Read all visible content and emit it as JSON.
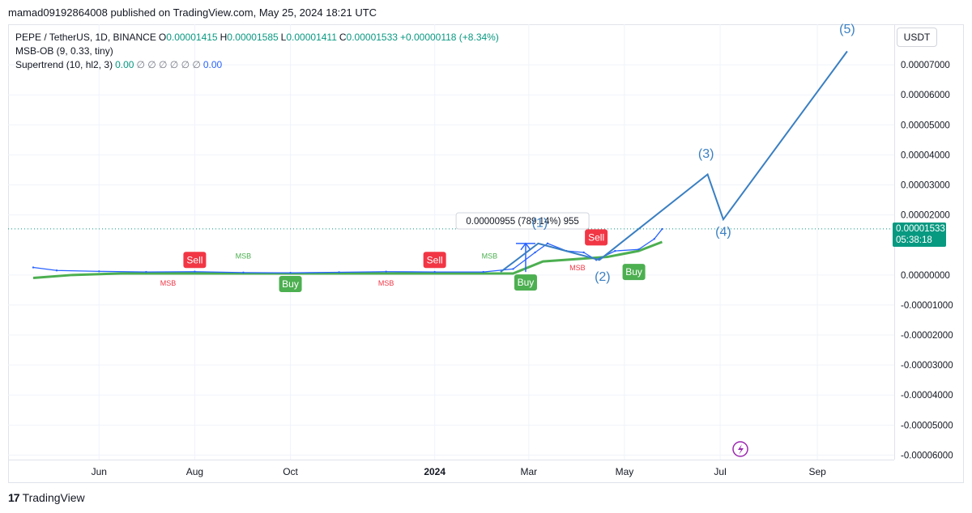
{
  "published": {
    "user": "mamad09192864008",
    "middle": " published on TradingView.com, ",
    "date": "May 25, 2024 18:21 UTC"
  },
  "legend": {
    "symbol": "PEPE / TetherUS, 1D, BINANCE",
    "o_key": "O",
    "o_val": "0.00001415",
    "h_key": "H",
    "h_val": "0.00001585",
    "l_key": "L",
    "l_val": "0.00001411",
    "c_key": "C",
    "c_val": "0.00001533",
    "change": "+0.00000118 (+8.34%)",
    "indicator1": "MSB-OB (9, 0.33, tiny)",
    "indicator2": "Supertrend (10, hl2, 3)",
    "st_val1": "0.00",
    "st_na": "∅ ∅ ∅ ∅ ∅ ∅",
    "st_val2": "0.00"
  },
  "currency": "USDT",
  "price_badge": {
    "price": "0.00001533",
    "countdown": "05:38:18"
  },
  "footer": {
    "brand": "TradingView",
    "logo_icon": "tradingview-logo-icon"
  },
  "colors": {
    "green": "#4caf50",
    "red": "#f23645",
    "wave_blue": "#3a7fc2",
    "candle_blue": "#2962ff",
    "teal": "#089981",
    "purple": "#9c27b0"
  },
  "chart_data": {
    "type": "line",
    "title": "",
    "yaxis": {
      "ticks": [
        "0.00007000",
        "0.00006000",
        "0.00005000",
        "0.00004000",
        "0.00003000",
        "0.00002000",
        "0.00000000",
        "-0.00001000",
        "-0.00002000",
        "-0.00003000",
        "-0.00004000",
        "-0.00005000",
        "-0.00006000"
      ],
      "tick_values": [
        7e-05,
        6e-05,
        5e-05,
        4e-05,
        3e-05,
        2e-05,
        0,
        -1e-05,
        -2e-05,
        -3e-05,
        -4e-05,
        -5e-05,
        -6e-05
      ],
      "ylim": [
        -6.15e-05,
        8.35e-05
      ]
    },
    "xaxis": {
      "ticks": [
        "Jun",
        "Aug",
        "Oct",
        "2024",
        "Mar",
        "May",
        "Jul",
        "Sep"
      ],
      "tick_dates": [
        "2023-06-01",
        "2023-08-01",
        "2023-10-01",
        "2024-01-01",
        "2024-03-01",
        "2024-05-01",
        "2024-07-01",
        "2024-09-01"
      ],
      "xlim": [
        "2023-04-04",
        "2024-10-20"
      ]
    },
    "last_price": 1.533e-05,
    "price_series": {
      "name": "PEPE / TetherUS",
      "x": [
        "2023-04-20",
        "2023-05-05",
        "2023-06-01",
        "2023-07-01",
        "2023-08-01",
        "2023-09-01",
        "2023-10-01",
        "2023-11-01",
        "2023-12-01",
        "2024-01-01",
        "2024-02-01",
        "2024-02-20",
        "2024-03-05",
        "2024-03-13",
        "2024-03-25",
        "2024-04-05",
        "2024-04-13",
        "2024-04-25",
        "2024-05-10",
        "2024-05-20",
        "2024-05-25"
      ],
      "y": [
        2.5e-06,
        1.5e-06,
        1.2e-06,
        1e-06,
        1.1e-06,
        8e-07,
        7e-07,
        9e-07,
        1.1e-06,
        1e-06,
        1e-06,
        2e-06,
        7.5e-06,
        1.05e-05,
        8e-06,
        7.5e-06,
        5e-06,
        8e-06,
        8.5e-06,
        1.2e-05,
        1.53e-05
      ]
    },
    "supertrend": {
      "name": "Supertrend",
      "x": [
        "2023-04-20",
        "2023-05-15",
        "2023-06-15",
        "2023-10-01",
        "2024-01-01",
        "2024-02-20",
        "2024-03-10",
        "2024-04-20",
        "2024-05-10",
        "2024-05-25"
      ],
      "y": [
        -1e-06,
        0.0,
        5e-07,
        5e-07,
        5e-07,
        5e-07,
        4.5e-06,
        6e-06,
        8e-06,
        1.1e-05
      ]
    },
    "elliott_wave": {
      "name": "",
      "x": [
        "2024-02-12",
        "2024-03-07",
        "2024-04-15",
        "2024-06-23",
        "2024-07-03",
        "2024-09-20"
      ],
      "y": [
        1e-06,
        1.05e-05,
        5e-06,
        3.35e-05,
        1.85e-05,
        7.45e-05
      ],
      "labels": [
        "(1)",
        "(2)",
        "(3)",
        "(4)",
        "(5)"
      ],
      "label_points": [
        {
          "text": "(1)",
          "x": "2024-03-08",
          "y": 1.6e-05
        },
        {
          "text": "(2)",
          "x": "2024-04-17",
          "y": -2e-06
        },
        {
          "text": "(3)",
          "x": "2024-06-22",
          "y": 3.9e-05
        },
        {
          "text": "(4)",
          "x": "2024-07-03",
          "y": 1.3e-05
        },
        {
          "text": "(5)",
          "x": "2024-09-20",
          "y": 8.05e-05
        }
      ]
    },
    "measure": {
      "text": "0.00000955 (789.14%) 955",
      "from": {
        "x": "2024-02-28",
        "y": 1e-06
      },
      "to": {
        "x": "2024-02-28",
        "y": 1.05e-05
      },
      "label_at": {
        "x": "2024-02-26",
        "y": 1.8e-05
      }
    },
    "signals": [
      {
        "text": "Sell",
        "kind": "sell",
        "x": "2023-08-01",
        "y": 5e-06
      },
      {
        "text": "Buy",
        "kind": "buy",
        "x": "2023-10-01",
        "y": -3e-06
      },
      {
        "text": "Sell",
        "kind": "sell",
        "x": "2024-01-01",
        "y": 5e-06
      },
      {
        "text": "Buy",
        "kind": "buy",
        "x": "2024-02-28",
        "y": -2.5e-06
      },
      {
        "text": "Sell",
        "kind": "sell",
        "x": "2024-04-13",
        "y": 1.25e-05
      },
      {
        "text": "Buy",
        "kind": "buy",
        "x": "2024-05-07",
        "y": 1e-06
      }
    ],
    "msb_labels": [
      {
        "text": "MSB",
        "color": "red",
        "x": "2023-07-15",
        "y": -3.5e-06
      },
      {
        "text": "MSB",
        "color": "green",
        "x": "2023-09-01",
        "y": 5.5e-06
      },
      {
        "text": "MSB",
        "color": "red",
        "x": "2023-12-01",
        "y": -3.5e-06
      },
      {
        "text": "MSB",
        "color": "green",
        "x": "2024-02-05",
        "y": 5.5e-06
      },
      {
        "text": "MSB",
        "color": "red",
        "x": "2024-04-01",
        "y": 1.5e-06
      }
    ],
    "grid": true,
    "legend_position": "top-left"
  }
}
